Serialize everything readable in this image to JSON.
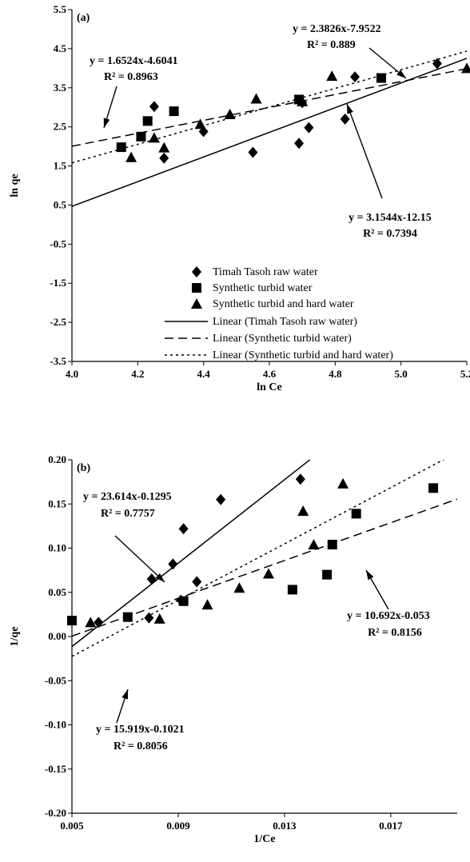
{
  "chart_data": [
    {
      "type": "scatter",
      "panel_label": "(a)",
      "xlabel": "ln Ce",
      "ylabel": "ln qe",
      "xlim": [
        4.0,
        5.2
      ],
      "ylim": [
        -3.5,
        5.5
      ],
      "x_ticks": [
        "4.0",
        "4.2",
        "4.4",
        "4.6",
        "4.8",
        "5.0",
        "5.2"
      ],
      "y_ticks": [
        "5.5",
        "4.5",
        "3.5",
        "2.5",
        "1.5",
        "0.5",
        "-0.5",
        "-1.5",
        "-2.5",
        "-3.5"
      ],
      "grid": false,
      "legend_position": "bottom-center",
      "series": [
        {
          "name": "Timah Tasoh raw water",
          "marker": "diamond",
          "x": [
            4.25,
            4.28,
            4.4,
            4.55,
            4.69,
            4.7,
            4.72,
            4.83,
            4.86,
            5.11
          ],
          "y": [
            3.02,
            1.7,
            2.38,
            1.85,
            2.08,
            3.12,
            2.48,
            2.7,
            3.78,
            4.12
          ]
        },
        {
          "name": "Synthetic turbid water",
          "marker": "square",
          "x": [
            4.15,
            4.21,
            4.23,
            4.31,
            4.69,
            4.94
          ],
          "y": [
            1.98,
            2.25,
            2.65,
            2.9,
            3.2,
            3.75
          ]
        },
        {
          "name": "Synthetic turbid and hard water",
          "marker": "triangle",
          "x": [
            4.18,
            4.25,
            4.28,
            4.39,
            4.48,
            4.56,
            4.7,
            4.79,
            5.2
          ],
          "y": [
            1.72,
            2.22,
            1.97,
            2.57,
            2.82,
            3.22,
            3.15,
            3.8,
            4.0
          ]
        }
      ],
      "trendlines": [
        {
          "name": "Linear (Timah Tasoh raw water)",
          "style": "solid",
          "slope": 3.1544,
          "intercept": -12.15,
          "equation": "y = 3.1544x-12.15",
          "r2": "R² = 0.7394"
        },
        {
          "name": "Linear (Synthetic turbid water)",
          "style": "dashed",
          "slope": 1.6524,
          "intercept": -4.6041,
          "equation": "y = 1.6524x-4.6041",
          "r2": "R² = 0.8963"
        },
        {
          "name": "Linear (Synthetic turbid and hard water)",
          "style": "dotted",
          "slope": 2.3826,
          "intercept": -7.9522,
          "equation": "y = 2.3826x-7.9522",
          "r2": "R² = 0.889"
        }
      ]
    },
    {
      "type": "scatter",
      "panel_label": "(b)",
      "xlabel": "1/Ce",
      "ylabel": "1/qe",
      "xlim": [
        0.005,
        0.0195
      ],
      "ylim": [
        -0.2,
        0.2
      ],
      "x_ticks": [
        "0.005",
        "0.009",
        "0.013",
        "0.017"
      ],
      "y_ticks": [
        "0.20",
        "0.15",
        "0.10",
        "0.05",
        "0.00",
        "-0.05",
        "-0.10",
        "-0.15",
        "-0.20"
      ],
      "grid": false,
      "series": [
        {
          "name": "Timah Tasoh raw water",
          "marker": "diamond",
          "x": [
            0.006,
            0.0079,
            0.008,
            0.0088,
            0.0091,
            0.0092,
            0.0097,
            0.0106,
            0.0136
          ],
          "y": [
            0.016,
            0.021,
            0.065,
            0.082,
            0.041,
            0.122,
            0.062,
            0.155,
            0.178
          ]
        },
        {
          "name": "Synthetic turbid water",
          "marker": "square",
          "x": [
            0.005,
            0.0071,
            0.0092,
            0.0133,
            0.0146,
            0.0148,
            0.0157,
            0.0186
          ],
          "y": [
            0.018,
            0.022,
            0.04,
            0.053,
            0.07,
            0.104,
            0.139,
            0.168
          ]
        },
        {
          "name": "Synthetic turbid and hard water",
          "marker": "triangle",
          "x": [
            0.0057,
            0.0083,
            0.0101,
            0.0113,
            0.0124,
            0.0137,
            0.0141,
            0.0152
          ],
          "y": [
            0.016,
            0.02,
            0.036,
            0.055,
            0.071,
            0.142,
            0.104,
            0.173
          ]
        }
      ],
      "trendlines": [
        {
          "name": "Timah Tasoh raw water",
          "style": "solid",
          "slope": 23.614,
          "intercept": -0.1295,
          "equation": "y = 23.614x-0.1295",
          "r2": "R² = 0.7757"
        },
        {
          "name": "Synthetic turbid water",
          "style": "dashed",
          "slope": 10.692,
          "intercept": -0.053,
          "equation": "y = 10.692x-0.053",
          "r2": "R² = 0.8156"
        },
        {
          "name": "Synthetic turbid and hard water",
          "style": "dotted",
          "slope": 15.919,
          "intercept": -0.1021,
          "equation": "y = 15.919x-0.1021",
          "r2": "R² = 0.8056"
        }
      ]
    }
  ]
}
